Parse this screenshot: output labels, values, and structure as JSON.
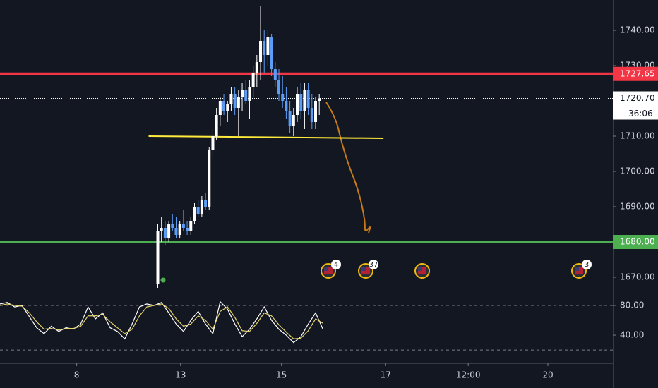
{
  "chart_data": {
    "type": "candlestick",
    "up_color": "#ffffff",
    "down_color": "#5b9cf6",
    "open": [
      1668,
      1683,
      1684,
      1681,
      1685,
      1684,
      1682,
      1685,
      1684,
      1683,
      1686,
      1690,
      1688,
      1692,
      1690,
      1706,
      1710,
      1716,
      1720,
      1717,
      1719,
      1722,
      1718,
      1721,
      1723,
      1720,
      1724,
      1728,
      1731,
      1737,
      1733,
      1738,
      1729,
      1726,
      1722,
      1720,
      1717,
      1713,
      1716,
      1722,
      1717,
      1723,
      1718,
      1714,
      1720
    ],
    "high": [
      1685,
      1687,
      1686,
      1686,
      1688,
      1687,
      1686,
      1689,
      1686,
      1687,
      1691,
      1692,
      1693,
      1694,
      1707,
      1712,
      1718,
      1721,
      1722,
      1720,
      1724,
      1724,
      1723,
      1725,
      1726,
      1726,
      1730,
      1733,
      1747,
      1740,
      1740,
      1739,
      1731,
      1729,
      1727,
      1724,
      1720,
      1718,
      1724,
      1725,
      1725,
      1725,
      1722,
      1721,
      1722
    ],
    "low": [
      1667,
      1680,
      1679,
      1680,
      1683,
      1681,
      1681,
      1683,
      1682,
      1682,
      1685,
      1687,
      1687,
      1689,
      1689,
      1704,
      1709,
      1713,
      1716,
      1714,
      1717,
      1716,
      1710,
      1717,
      1719,
      1715,
      1721,
      1724,
      1726,
      1728,
      1730,
      1727,
      1724,
      1720,
      1718,
      1715,
      1711,
      1710,
      1714,
      1715,
      1712,
      1716,
      1712,
      1712,
      1716
    ],
    "close": [
      1683,
      1684,
      1681,
      1685,
      1684,
      1682,
      1685,
      1684,
      1683,
      1686,
      1690,
      1688,
      1692,
      1690,
      1706,
      1710,
      1716,
      1720,
      1717,
      1719,
      1722,
      1718,
      1721,
      1723,
      1720,
      1724,
      1728,
      1731,
      1737,
      1733,
      1738,
      1729,
      1726,
      1722,
      1720,
      1717,
      1713,
      1716,
      1722,
      1717,
      1723,
      1718,
      1714,
      1720,
      1720.7
    ],
    "xlim": [
      -43,
      124
    ],
    "xticks": [
      {
        "value": -22.1,
        "label": "8"
      },
      {
        "value": 6.2,
        "label": "13"
      },
      {
        "value": 33.7,
        "label": "15"
      },
      {
        "value": 62.1,
        "label": "17"
      },
      {
        "value": 84.6,
        "label": "12:00"
      },
      {
        "value": 106.3,
        "label": "20"
      }
    ],
    "ylim": [
      1668.2,
      1748.6
    ],
    "yticks": [
      {
        "value": 1670,
        "label": "1670.00"
      },
      {
        "value": 1680,
        "label": "1680.00"
      },
      {
        "value": 1690,
        "label": "1690.00"
      },
      {
        "value": 1700,
        "label": "1700.00"
      },
      {
        "value": 1710,
        "label": "1710.00"
      },
      {
        "value": 1720,
        "label": "1720.00"
      },
      {
        "value": 1730,
        "label": "1730.00"
      },
      {
        "value": 1740,
        "label": "1740.00"
      }
    ],
    "levels": [
      {
        "value": 1727.65,
        "label": "1727.65",
        "color": "#f23645"
      },
      {
        "value": 1680,
        "label": "1680.00",
        "color": "#4caf50"
      }
    ],
    "last_price": {
      "value": 1720.7,
      "label": "1720.70"
    },
    "countdown": "36:06",
    "trendline": {
      "x": [
        -2.5,
        61.5
      ],
      "y": [
        1710,
        1709.4
      ],
      "color": "#ffeb3b"
    },
    "event_badges": [
      "4",
      "37",
      "3"
    ],
    "oscillator": {
      "x": [
        -43,
        -41,
        -39,
        -37,
        -35,
        -33,
        -31,
        -29,
        -27,
        -25,
        -23,
        -21,
        -19,
        -17,
        -15,
        -13,
        -11,
        -9,
        -7,
        -5,
        -3,
        -1,
        1,
        3,
        5,
        7,
        9,
        11,
        13,
        15,
        17,
        19,
        21,
        23,
        25,
        27,
        29,
        31,
        33,
        35,
        37,
        39,
        41,
        43,
        45
      ],
      "ylim": [
        2,
        109.5
      ],
      "yticks": [
        {
          "value": 40,
          "label": "40.00"
        },
        {
          "value": 80,
          "label": "80.00"
        }
      ],
      "levels": [
        80,
        20
      ],
      "series": [
        {
          "color": "#ffffff",
          "values": [
            82,
            84,
            78,
            80,
            65,
            50,
            42,
            52,
            45,
            50,
            48,
            55,
            78,
            62,
            70,
            50,
            45,
            35,
            55,
            78,
            82,
            80,
            84,
            70,
            55,
            45,
            60,
            72,
            55,
            42,
            85,
            75,
            55,
            38,
            48,
            62,
            78,
            60,
            48,
            40,
            30,
            38,
            55,
            70,
            48
          ]
        },
        {
          "color": "#e6d36a",
          "values": [
            80,
            82,
            80,
            79,
            70,
            58,
            48,
            49,
            47,
            49,
            49,
            52,
            66,
            66,
            68,
            58,
            50,
            42,
            48,
            66,
            78,
            80,
            82,
            76,
            62,
            52,
            55,
            66,
            60,
            48,
            72,
            78,
            64,
            46,
            45,
            56,
            70,
            66,
            54,
            44,
            35,
            36,
            46,
            62,
            56
          ]
        }
      ]
    }
  }
}
